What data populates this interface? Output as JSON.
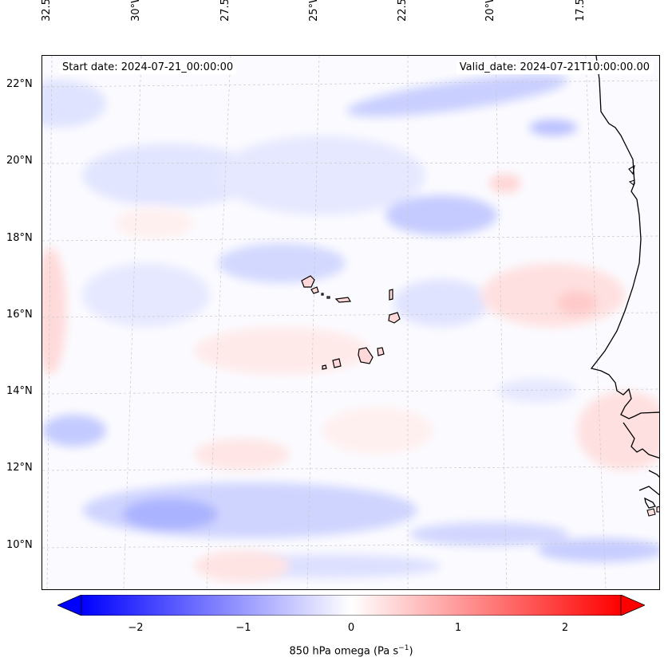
{
  "map": {
    "start_label": "Start date: 2024-07-21_00:00:00",
    "valid_label": "Valid_date: 2024-07-21T10:00:00.00",
    "lon_ticks": [
      "32.5°W",
      "30°W",
      "27.5°W",
      "25°W",
      "22.5°W",
      "20°W",
      "17.5°W"
    ],
    "lat_ticks": [
      "22°N",
      "20°N",
      "18°N",
      "16°N",
      "14°N",
      "12°N",
      "10°N"
    ],
    "gridlines": true
  },
  "colorbar": {
    "ticks": [
      "−2",
      "−1",
      "0",
      "1",
      "2"
    ],
    "range": [
      -2.5,
      2.5
    ],
    "extend": "both",
    "colors": {
      "min": "#0000ff",
      "mid": "#ffffff",
      "max": "#ff0000"
    },
    "label_main": "850 hPa omega (Pa s",
    "label_exp": "−1",
    "label_end": ")"
  }
}
